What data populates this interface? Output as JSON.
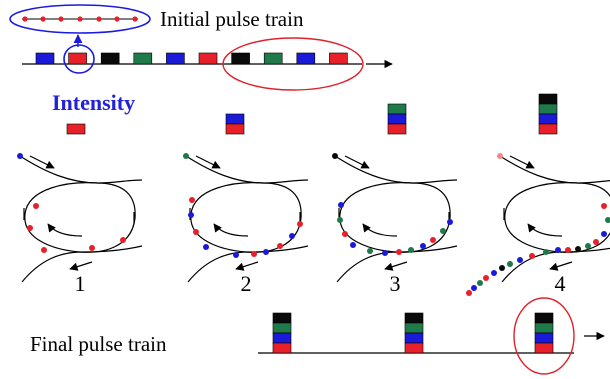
{
  "labels": {
    "initial_title": "Initial pulse train",
    "intensity": "Intensity",
    "final_title": "Final pulse train",
    "panel_numbers": [
      "1",
      "2",
      "3",
      "4"
    ]
  },
  "colors": {
    "red": "#e8202a",
    "blue": "#1a1ad8",
    "black": "#0a0a0a",
    "green": "#1f7a4a",
    "pink": "#f08a8a",
    "intensity_text": "#2222dd",
    "highlight_ellipse_blue": "#1a1ae0",
    "highlight_ellipse_red": "#e0202a"
  },
  "initial_train": [
    "blue",
    "red",
    "black",
    "green",
    "blue",
    "red",
    "black",
    "green",
    "blue",
    "red"
  ],
  "intensity_stacks": [
    [
      "red"
    ],
    [
      "blue",
      "red"
    ],
    [
      "green",
      "blue",
      "red"
    ],
    [
      "black",
      "green",
      "blue",
      "red"
    ]
  ],
  "final_stacks": [
    [
      "black",
      "green",
      "blue",
      "red"
    ],
    [
      "black",
      "green",
      "blue",
      "red"
    ],
    [
      "black",
      "green",
      "blue",
      "red"
    ]
  ]
}
